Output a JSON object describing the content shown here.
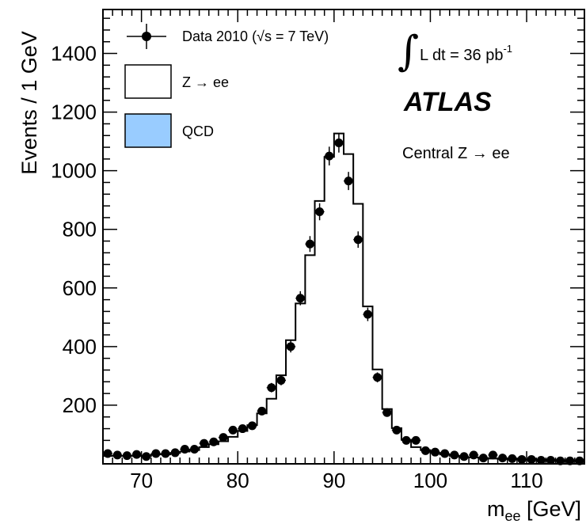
{
  "chart_data": {
    "type": "histogram",
    "title": "",
    "xlabel": "m",
    "xlabel_sub": "ee",
    "xlabel_unit": " [GeV]",
    "ylabel": "Events / 1 GeV",
    "xlim": [
      66,
      116
    ],
    "ylim": [
      0,
      1550
    ],
    "xticks": [
      70,
      80,
      90,
      100,
      110
    ],
    "yticks": [
      200,
      400,
      600,
      800,
      1000,
      1200,
      1400
    ],
    "grid": false,
    "legend_position": "top-left",
    "legend": {
      "data": "Data 2010 (√s = 7 TeV)",
      "zee": "Z → ee",
      "qcd": "QCD"
    },
    "annotations": {
      "lumi_prefix": "L dt = 36 pb",
      "lumi_sup": "-1",
      "experiment": "ATLAS",
      "selection": "Central Z → ee"
    },
    "colors": {
      "qcd_fill": "#99ccff",
      "data": "#000000",
      "mc_line": "#000000"
    },
    "bins": {
      "edges_start": 66,
      "width": 1,
      "zee": [
        25,
        25,
        25,
        25,
        25,
        30,
        30,
        35,
        40,
        45,
        55,
        65,
        75,
        90,
        110,
        130,
        170,
        220,
        300,
        420,
        545,
        710,
        895,
        1045,
        1125,
        1055,
        885,
        535,
        320,
        185,
        120,
        80,
        55,
        45,
        35,
        30,
        25,
        20,
        20,
        18,
        16,
        15,
        14,
        13,
        12,
        12,
        11,
        10,
        10,
        10
      ],
      "qcd": [
        2,
        2,
        2,
        2,
        2,
        2,
        2,
        2,
        2,
        2,
        2,
        2,
        2,
        2,
        2,
        2,
        2,
        2,
        2,
        2,
        2,
        2,
        2,
        2,
        2,
        2,
        2,
        2,
        2,
        2,
        2,
        2,
        2,
        2,
        2,
        2,
        2,
        2,
        2,
        2,
        2,
        2,
        2,
        2,
        2,
        2,
        2,
        2,
        2,
        2
      ]
    },
    "data_points": {
      "x": [
        66.5,
        67.5,
        68.5,
        69.5,
        70.5,
        71.5,
        72.5,
        73.5,
        74.5,
        75.5,
        76.5,
        77.5,
        78.5,
        79.5,
        80.5,
        81.5,
        82.5,
        83.5,
        84.5,
        85.5,
        86.5,
        87.5,
        88.5,
        89.5,
        90.5,
        91.5,
        92.5,
        93.5,
        94.5,
        95.5,
        96.5,
        97.5,
        98.5,
        99.5,
        100.5,
        101.5,
        102.5,
        103.5,
        104.5,
        105.5,
        106.5,
        107.5,
        108.5,
        109.5,
        110.5,
        111.5,
        112.5,
        113.5,
        114.5,
        115.5
      ],
      "y": [
        35,
        30,
        28,
        32,
        25,
        35,
        35,
        38,
        50,
        50,
        70,
        75,
        90,
        115,
        120,
        130,
        180,
        260,
        285,
        400,
        565,
        750,
        860,
        1050,
        1095,
        965,
        765,
        510,
        295,
        175,
        115,
        80,
        80,
        45,
        40,
        35,
        30,
        25,
        30,
        20,
        30,
        20,
        18,
        15,
        15,
        12,
        12,
        10,
        10,
        10
      ],
      "yerr": [
        6,
        6,
        5,
        6,
        5,
        6,
        6,
        6,
        7,
        7,
        8,
        9,
        9,
        11,
        11,
        11,
        13,
        16,
        17,
        20,
        24,
        27,
        29,
        32,
        33,
        31,
        28,
        23,
        17,
        13,
        11,
        9,
        9,
        7,
        6,
        6,
        5,
        5,
        5,
        4,
        5,
        4,
        4,
        4,
        4,
        3,
        3,
        3,
        3,
        3
      ]
    }
  }
}
